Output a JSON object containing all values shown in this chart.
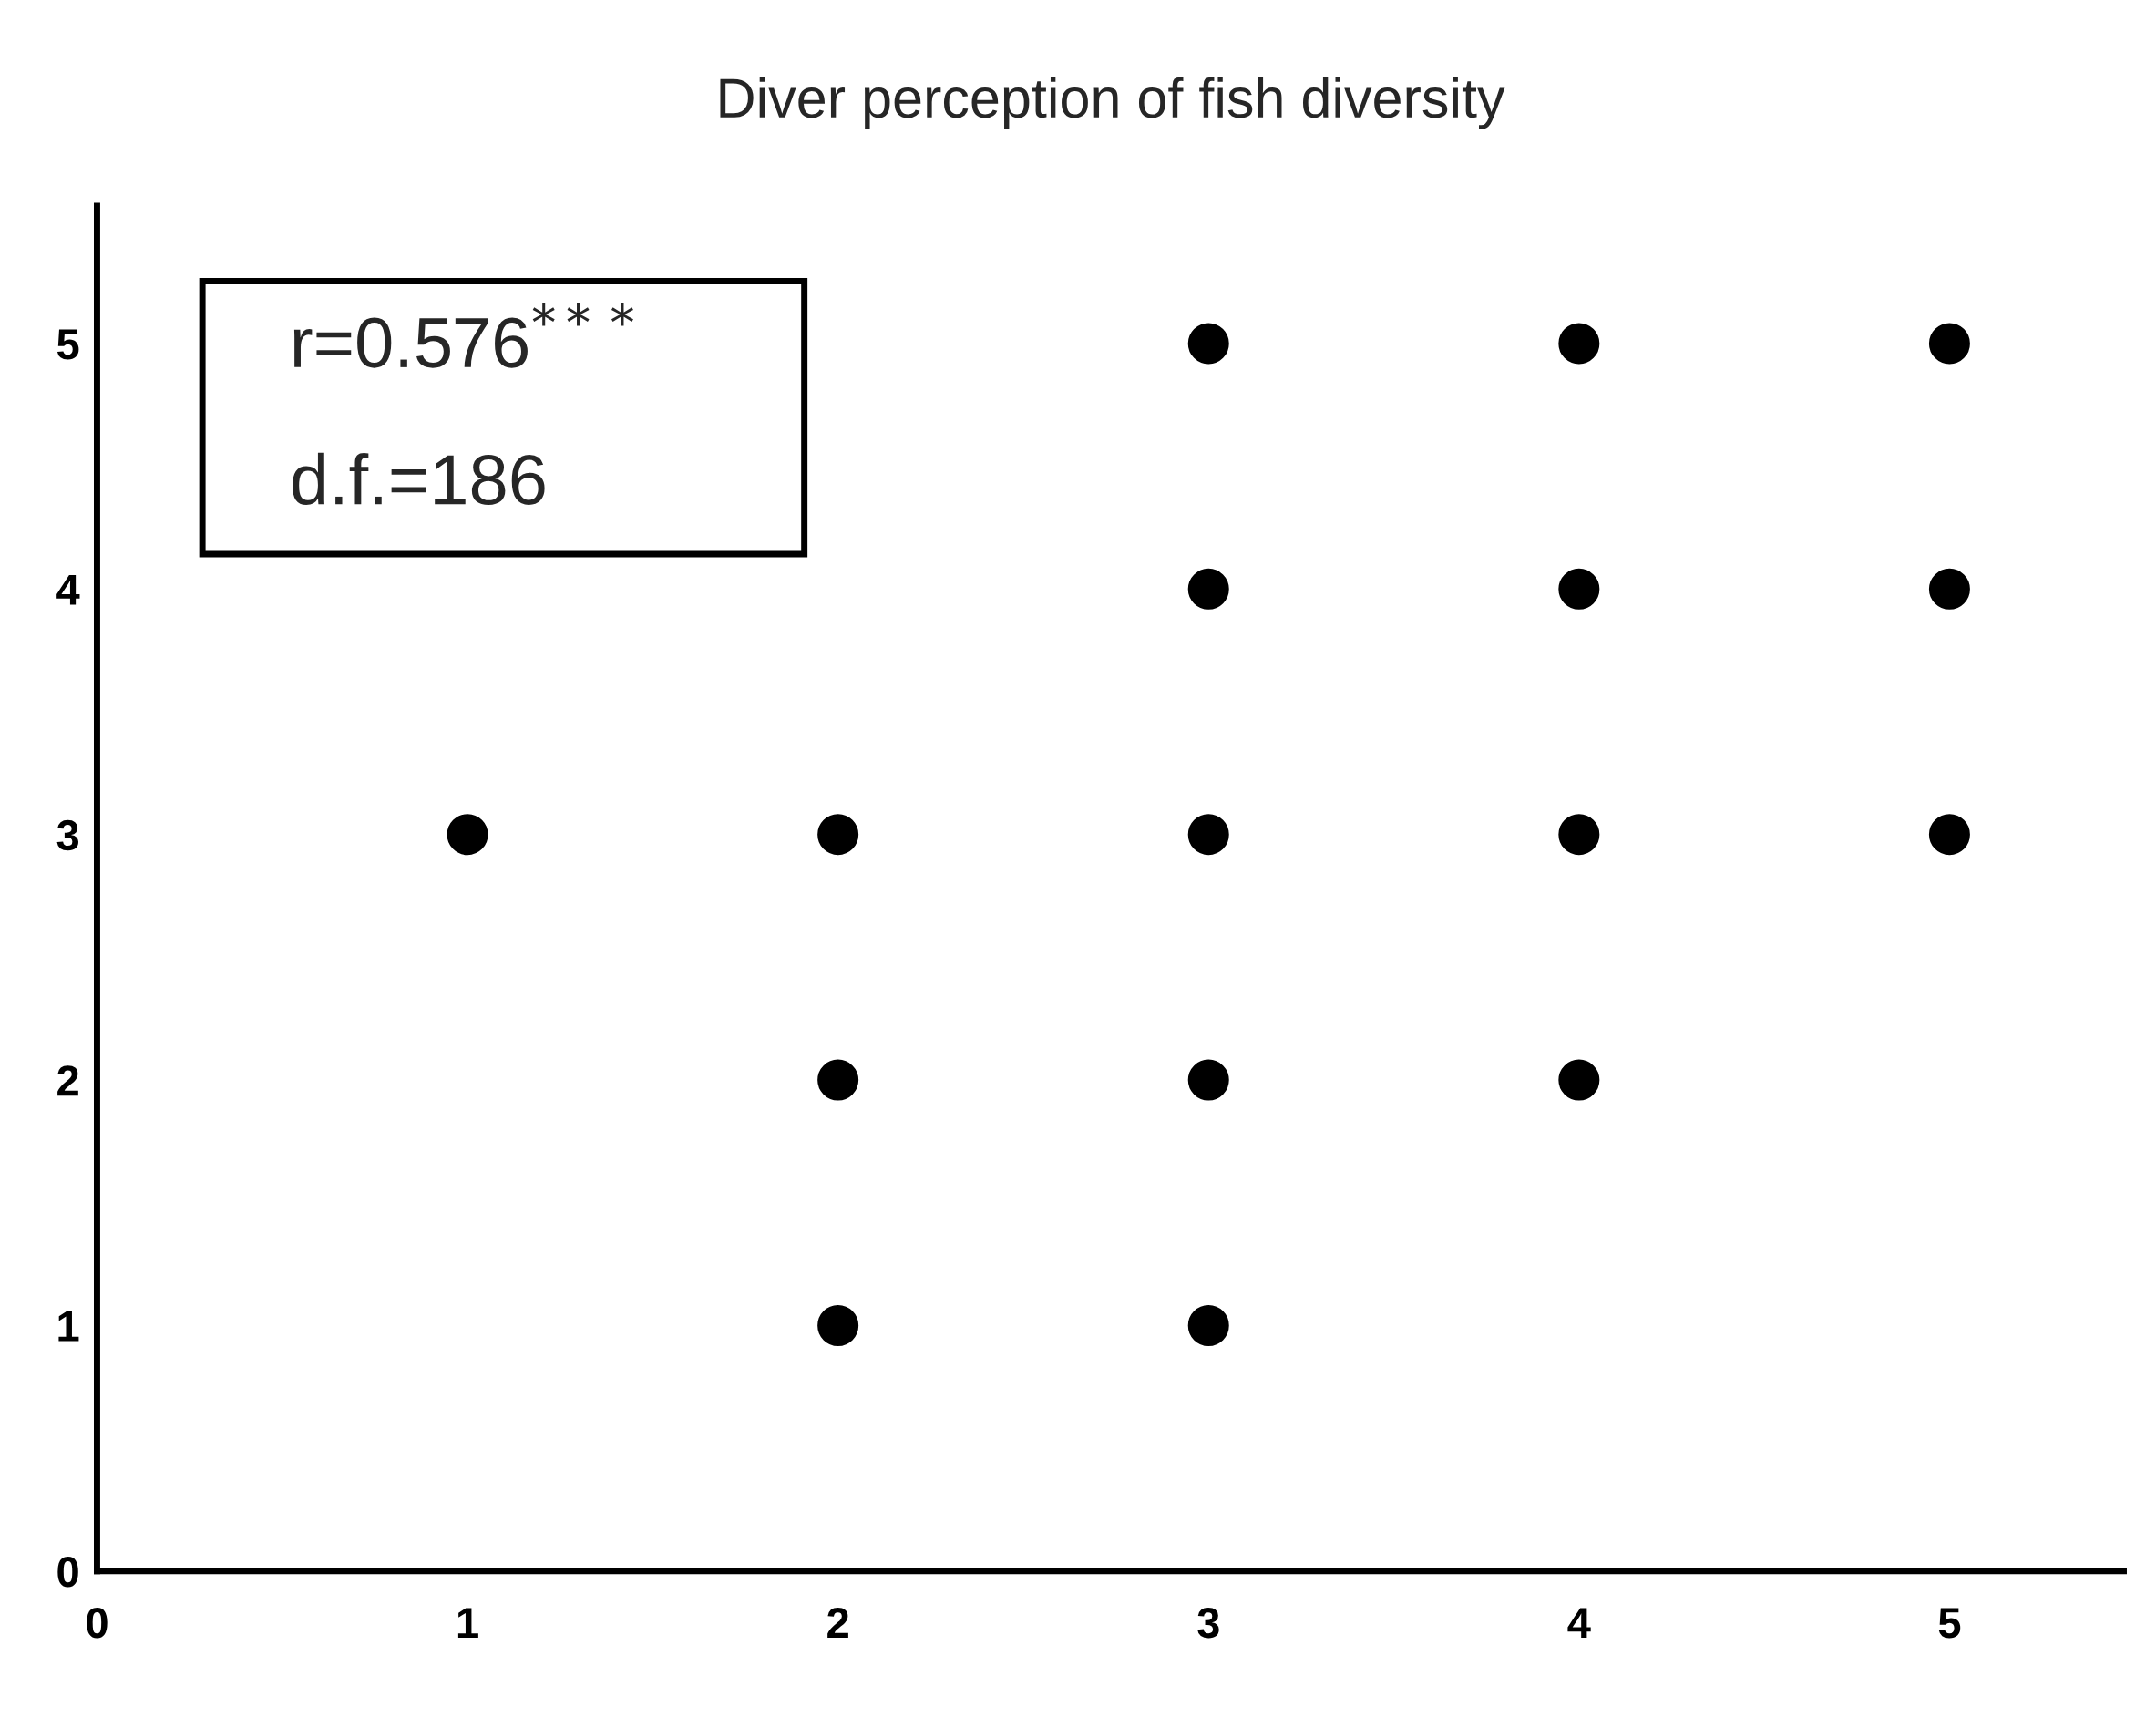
{
  "chart_data": {
    "type": "scatter",
    "title": "Diver perception of fish diversity",
    "x": [
      1,
      2,
      2,
      2,
      3,
      3,
      3,
      3,
      3,
      4,
      4,
      4,
      4,
      5,
      5,
      5
    ],
    "values": [
      3,
      3,
      2,
      1,
      5,
      4,
      3,
      2,
      1,
      5,
      4,
      3,
      2,
      5,
      4,
      3
    ],
    "color": "#000000",
    "marker": "circle",
    "xlim": [
      0,
      5.47
    ],
    "ylim": [
      0,
      5.56
    ],
    "xticks": [
      0,
      1,
      2,
      3,
      4,
      5
    ],
    "yticks": [
      0,
      1,
      2,
      3,
      4,
      5
    ],
    "grid": false,
    "legend": false,
    "annotations": [
      "r=0.576$^{***}$",
      "d.f.=186"
    ]
  }
}
